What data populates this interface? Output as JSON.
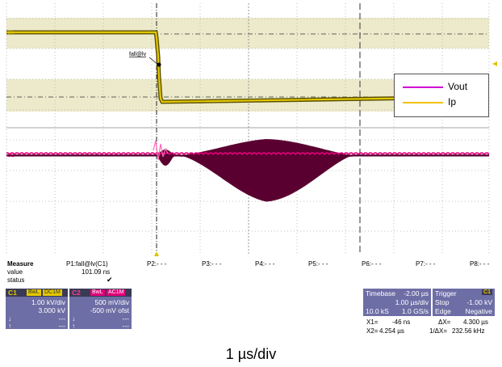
{
  "colors": {
    "ch1": "#e3c800",
    "ch2": "#e0007a",
    "panel": "#6e6ea6",
    "highlight_band": "#eceacb",
    "grid": "#9a9a9a"
  },
  "screen": {
    "ch1_marker": "C1",
    "ch2_marker": "C2",
    "trigger_label": "fall@lv"
  },
  "legend": {
    "items": [
      {
        "label": "Vout",
        "color": "#d000d0"
      },
      {
        "label": "Ip",
        "color": "#f0c000"
      }
    ]
  },
  "measure": {
    "title": "Measure",
    "row_value": "value",
    "row_status": "status",
    "p1_name": "P1:fall@lv(C1)",
    "p1_value": "101.09 ns",
    "p1_status": "✔",
    "params": [
      "P2:- - -",
      "P3:- - -",
      "P4:- - -",
      "P5:- - -",
      "P6:- - -",
      "P7:- - -",
      "P8:- - -"
    ]
  },
  "c1": {
    "label": "C1",
    "badge1": "BwL",
    "badge2": "DC1M",
    "scale": "1.00 kV/div",
    "offset": "3.000 kV",
    "r1": "---",
    "r2": "---"
  },
  "c2": {
    "label": "C2",
    "badge1": "BwL",
    "badge2": "AC1M",
    "scale": "500 mV/div",
    "offset": "-500 mV ofst",
    "r1": "---",
    "r2": "---"
  },
  "timebase": {
    "title": "Timebase",
    "delay": "-2.00 µs",
    "per_div": "1.00 µs/div",
    "samples": "10.0 kS",
    "rate": "1.0 GS/s"
  },
  "trigger": {
    "title": "Trigger",
    "channel": "C1",
    "mode": "Stop",
    "level": "-1.00 kV",
    "type": "Edge",
    "slope": "Negative"
  },
  "cursors": {
    "x1_label": "X1=",
    "x1_value": "-46 ns",
    "dx_label": "ΔX=",
    "dx_value": "4.300 µs",
    "x2_label": "X2=",
    "x2_value": "4.254 µs",
    "inv_label": "1/ΔX=",
    "inv_value": "232.56 kHz"
  },
  "caption": "1 µs/div"
}
